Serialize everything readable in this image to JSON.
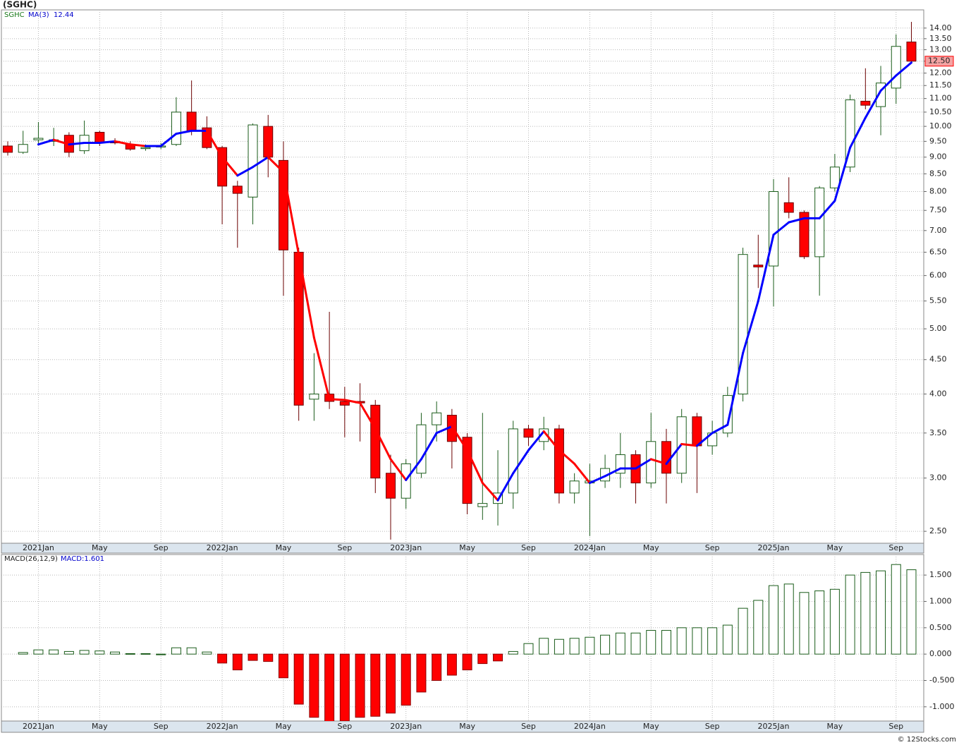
{
  "chart_data": [
    {
      "type": "candlestick",
      "title": "(SGHC)",
      "symbol": "SGHC",
      "log_scale": true,
      "grid": true,
      "categories": [
        null,
        null,
        "2021Jan",
        null,
        null,
        null,
        "May",
        null,
        null,
        null,
        "Sep",
        null,
        null,
        null,
        "2022Jan",
        null,
        null,
        null,
        "May",
        null,
        null,
        null,
        "Sep",
        null,
        null,
        null,
        "2023Jan",
        null,
        null,
        null,
        "May",
        null,
        null,
        null,
        "Sep",
        null,
        null,
        null,
        "2024Jan",
        null,
        null,
        null,
        "May",
        null,
        null,
        null,
        "Sep",
        null,
        null,
        null,
        "2025Jan",
        null,
        null,
        null,
        "May",
        null,
        null,
        null,
        "Sep",
        null
      ],
      "open": [
        9.35,
        9.15,
        9.55,
        9.5,
        9.7,
        9.2,
        9.8,
        9.5,
        9.4,
        9.3,
        9.35,
        9.4,
        10.5,
        9.95,
        9.3,
        8.15,
        7.85,
        10.0,
        8.9,
        6.5,
        3.93,
        4.0,
        3.9,
        3.9,
        3.85,
        3.05,
        2.8,
        3.05,
        3.6,
        3.72,
        3.45,
        2.72,
        2.75,
        2.85,
        3.55,
        3.4,
        3.55,
        2.85,
        2.95,
        2.97,
        3.05,
        3.25,
        2.95,
        3.4,
        3.05,
        3.7,
        3.35,
        3.5,
        4.0,
        6.22,
        6.2,
        7.7,
        7.45,
        6.4,
        8.1,
        8.7,
        10.9,
        10.7,
        11.4,
        13.35
      ],
      "high": [
        9.5,
        9.85,
        10.15,
        9.95,
        9.8,
        10.2,
        9.85,
        9.6,
        9.5,
        9.4,
        9.45,
        11.05,
        11.7,
        10.35,
        9.35,
        8.3,
        10.1,
        10.4,
        9.5,
        6.6,
        4.6,
        5.3,
        4.1,
        4.15,
        3.92,
        3.25,
        3.2,
        3.75,
        3.9,
        3.8,
        3.5,
        3.75,
        3.3,
        3.65,
        3.6,
        3.7,
        3.6,
        3.05,
        3.15,
        3.25,
        3.5,
        3.3,
        3.75,
        3.55,
        3.8,
        3.75,
        3.65,
        4.1,
        6.6,
        6.9,
        8.35,
        8.4,
        7.5,
        8.15,
        9.1,
        11.15,
        12.2,
        12.3,
        13.7,
        14.3
      ],
      "low": [
        9.05,
        9.1,
        9.4,
        9.35,
        9.0,
        9.1,
        9.35,
        9.4,
        9.2,
        9.2,
        9.25,
        9.35,
        9.7,
        9.25,
        7.15,
        6.6,
        7.15,
        8.4,
        5.6,
        3.65,
        3.65,
        3.8,
        3.45,
        3.4,
        2.85,
        2.43,
        2.7,
        3.0,
        3.4,
        3.1,
        2.65,
        2.6,
        2.55,
        2.7,
        3.35,
        3.3,
        2.75,
        2.75,
        2.46,
        2.9,
        2.9,
        2.75,
        2.9,
        2.75,
        2.95,
        2.85,
        3.25,
        3.45,
        3.9,
        5.75,
        5.4,
        7.3,
        6.35,
        5.6,
        8.0,
        8.55,
        10.6,
        9.7,
        10.8,
        12.4
      ],
      "close": [
        9.15,
        9.4,
        9.6,
        9.55,
        9.15,
        9.7,
        9.45,
        9.45,
        9.25,
        9.3,
        9.35,
        10.5,
        9.85,
        9.3,
        8.15,
        7.95,
        10.05,
        9.0,
        6.55,
        3.85,
        4.0,
        3.9,
        3.85,
        3.88,
        3.0,
        2.8,
        3.15,
        3.6,
        3.75,
        3.4,
        2.75,
        2.75,
        2.85,
        3.55,
        3.45,
        3.55,
        2.85,
        2.97,
        2.97,
        3.1,
        3.25,
        2.95,
        3.4,
        3.05,
        3.7,
        3.35,
        3.5,
        3.98,
        6.45,
        6.18,
        8.0,
        7.45,
        6.4,
        8.1,
        8.7,
        10.95,
        10.75,
        11.6,
        13.15,
        12.5
      ],
      "up_color": "#ffffff",
      "down_color": "#ff0000",
      "edge_color": "#1a5c1a",
      "last_price_label": "12.50",
      "series": [
        {
          "name": "MA(3)",
          "up_color": "#0000ff",
          "down_color": "#ff0000",
          "values": [
            null,
            null,
            9.4,
            9.55,
            9.4,
            9.45,
            9.45,
            9.5,
            9.4,
            9.35,
            9.35,
            9.75,
            9.85,
            9.85,
            9.0,
            8.45,
            8.7,
            9.0,
            8.55,
            6.45,
            4.85,
            3.93,
            3.92,
            3.88,
            3.55,
            3.2,
            2.98,
            3.2,
            3.5,
            3.58,
            3.3,
            2.95,
            2.78,
            3.05,
            3.3,
            3.52,
            3.3,
            3.15,
            2.95,
            3.02,
            3.1,
            3.1,
            3.2,
            3.15,
            3.37,
            3.35,
            3.5,
            3.6,
            4.6,
            5.5,
            6.9,
            7.2,
            7.3,
            7.3,
            7.75,
            9.3,
            10.3,
            11.3,
            11.9,
            12.44
          ]
        }
      ],
      "ylim": [
        2.4,
        14.9
      ],
      "yticks": [
        {
          "value": 14,
          "label": "14.00"
        },
        {
          "value": 13.5,
          "label": "13.50"
        },
        {
          "value": 13,
          "label": "13.00"
        },
        {
          "value": 12.5,
          "label": "12.50"
        },
        {
          "value": 12,
          "label": "12.00"
        },
        {
          "value": 11.5,
          "label": "11.50"
        },
        {
          "value": 11,
          "label": "11.00"
        },
        {
          "value": 10.5,
          "label": "10.50"
        },
        {
          "value": 10,
          "label": "10.00"
        },
        {
          "value": 9.5,
          "label": "9.50"
        },
        {
          "value": 9,
          "label": "9.00"
        },
        {
          "value": 8.5,
          "label": "8.50"
        },
        {
          "value": 8,
          "label": "8.00"
        },
        {
          "value": 7.5,
          "label": "7.50"
        },
        {
          "value": 7,
          "label": "7.00"
        },
        {
          "value": 6.5,
          "label": "6.50"
        },
        {
          "value": 6,
          "label": "6.00"
        },
        {
          "value": 5.5,
          "label": "5.50"
        },
        {
          "value": 5,
          "label": "5.00"
        },
        {
          "value": 4.5,
          "label": "4.50"
        },
        {
          "value": 4,
          "label": "4.00"
        },
        {
          "value": 3.5,
          "label": "3.50"
        },
        {
          "value": 3,
          "label": "3.00"
        },
        {
          "value": 2.5,
          "label": "2.50"
        }
      ]
    },
    {
      "type": "bar",
      "name": "MACD(26,12,9)",
      "legend": "MACD:1.601",
      "grid": true,
      "categories": [
        null,
        null,
        "2021Jan",
        null,
        null,
        null,
        "May",
        null,
        null,
        null,
        "Sep",
        null,
        null,
        null,
        "2022Jan",
        null,
        null,
        null,
        "May",
        null,
        null,
        null,
        "Sep",
        null,
        null,
        null,
        "2023Jan",
        null,
        null,
        null,
        "May",
        null,
        null,
        null,
        "Sep",
        null,
        null,
        null,
        "2024Jan",
        null,
        null,
        null,
        "May",
        null,
        null,
        null,
        "Sep",
        null,
        null,
        null,
        "2025Jan",
        null,
        null,
        null,
        "May",
        null,
        null,
        null,
        "Sep",
        null
      ],
      "values": [
        null,
        0.03,
        0.08,
        0.08,
        0.05,
        0.07,
        0.06,
        0.04,
        0.01,
        0.01,
        0.0,
        0.12,
        0.12,
        0.04,
        -0.17,
        -0.3,
        -0.12,
        -0.14,
        -0.45,
        -0.95,
        -1.2,
        -1.3,
        -1.27,
        -1.2,
        -1.18,
        -1.12,
        -0.97,
        -0.72,
        -0.5,
        -0.4,
        -0.3,
        -0.18,
        -0.13,
        0.05,
        0.2,
        0.3,
        0.28,
        0.3,
        0.32,
        0.36,
        0.4,
        0.4,
        0.45,
        0.45,
        0.5,
        0.5,
        0.5,
        0.55,
        0.87,
        1.02,
        1.3,
        1.33,
        1.17,
        1.2,
        1.23,
        1.5,
        1.55,
        1.58,
        1.7,
        1.601
      ],
      "up_color": "#ffffff",
      "down_color": "#ff0000",
      "edge_color": "#1a5c1a",
      "ylim": [
        -1.27,
        1.89
      ],
      "yticks": [
        {
          "value": 1.5,
          "label": "1.500"
        },
        {
          "value": 1,
          "label": "1.000"
        },
        {
          "value": 0.5,
          "label": "0.500"
        },
        {
          "value": 0,
          "label": "0.000"
        },
        {
          "value": -0.5,
          "label": "-0.500"
        },
        {
          "value": -1,
          "label": "-1.000"
        }
      ]
    }
  ],
  "footer": "© 12Stocks.com"
}
